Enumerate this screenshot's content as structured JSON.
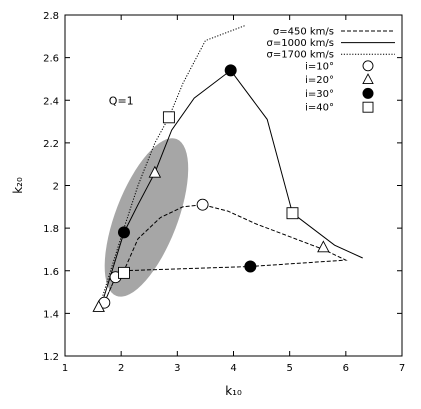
{
  "chart_data": {
    "type": "line",
    "xlabel": "k₁₀",
    "ylabel": "k₂₀",
    "xlim": [
      1,
      7
    ],
    "ylim": [
      1.2,
      2.8
    ],
    "x_ticks": [
      1,
      2,
      3,
      4,
      5,
      6,
      7
    ],
    "y_ticks": [
      1.2,
      1.4,
      1.6,
      1.8,
      2.0,
      2.2,
      2.4,
      2.6,
      2.8
    ],
    "x_tick_labels": [
      "1",
      "2",
      "3",
      "4",
      "5",
      "6",
      "7"
    ],
    "y_tick_labels": [
      "1.2",
      "1.4",
      "1.6",
      "1.8",
      "2",
      "2.2",
      "2.4",
      "2.6",
      "2.8"
    ],
    "grid": false,
    "legend_position": "top-right",
    "annotations": [
      {
        "text": "Q=1",
        "x": 1.78,
        "y": 2.38
      }
    ],
    "shaded_region": {
      "shape": "ellipse",
      "center": [
        2.45,
        1.85
      ],
      "color": "#a6a6a6"
    },
    "series": [
      {
        "name": "σ=450 km/s",
        "style": "dashed",
        "x": [
          1.7,
          1.9,
          2.05,
          2.3,
          2.7,
          3.1,
          3.45,
          3.9,
          4.4,
          4.9,
          5.4,
          5.6,
          6.0,
          4.3,
          2.05,
          1.9,
          1.7
        ],
        "y": [
          1.45,
          1.57,
          1.6,
          1.75,
          1.85,
          1.9,
          1.91,
          1.88,
          1.82,
          1.77,
          1.72,
          1.7,
          1.65,
          1.62,
          1.6,
          1.57,
          1.45
        ]
      },
      {
        "name": "σ=1000 km/s",
        "style": "solid",
        "x": [
          1.65,
          2.05,
          2.3,
          2.6,
          2.9,
          3.3,
          3.95,
          4.6,
          5.05,
          5.8,
          6.3
        ],
        "y": [
          1.44,
          1.78,
          1.91,
          2.06,
          2.26,
          2.41,
          2.54,
          2.31,
          1.87,
          1.72,
          1.66
        ]
      },
      {
        "name": "σ=1700 km/s",
        "style": "dotted",
        "x": [
          1.6,
          1.8,
          2.05,
          2.3,
          2.6,
          2.85,
          3.1,
          3.5,
          4.2
        ],
        "y": [
          1.42,
          1.59,
          1.8,
          2.0,
          2.2,
          2.32,
          2.48,
          2.68,
          2.75
        ]
      }
    ],
    "markers": [
      {
        "name": "i=10°",
        "symbol": "open-circle",
        "points": [
          [
            1.7,
            1.45
          ],
          [
            1.9,
            1.57
          ],
          [
            3.45,
            1.91
          ]
        ]
      },
      {
        "name": "i=20°",
        "symbol": "open-triangle",
        "points": [
          [
            1.6,
            1.43
          ],
          [
            2.6,
            2.06
          ],
          [
            5.6,
            1.71
          ]
        ]
      },
      {
        "name": "i=30°",
        "symbol": "filled-circle",
        "points": [
          [
            2.05,
            1.78
          ],
          [
            3.95,
            2.54
          ],
          [
            4.3,
            1.62
          ]
        ]
      },
      {
        "name": "i=40°",
        "symbol": "open-square",
        "points": [
          [
            2.05,
            1.59
          ],
          [
            2.85,
            2.32
          ],
          [
            5.05,
            1.87
          ]
        ]
      }
    ]
  }
}
